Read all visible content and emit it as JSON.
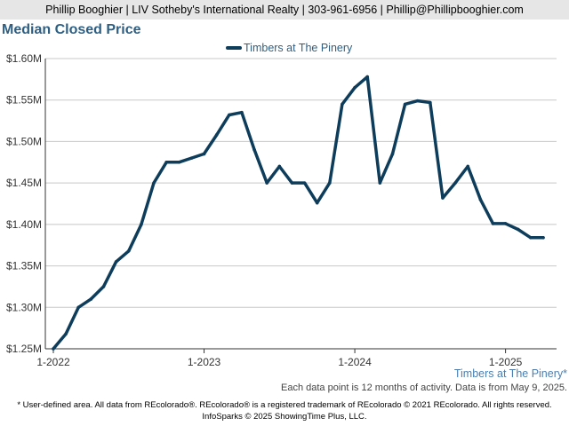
{
  "header": {
    "text": "Phillip Booghier | LIV Sotheby's International Realty | 303-961-6956 | Phillip@Phillipbooghier.com"
  },
  "footer": {
    "series_note": "Timbers at The Pinery*",
    "activity_note": "Each data point is 12 months of activity. Data is from May 9, 2025.",
    "disclaimer": "* User-defined area. All data from REcolorado®. REcolorado® is a registered trademark of REcolorado © 2021 REcolorado. All rights reserved.",
    "copyright": "InfoSparks © 2025 ShowingTime Plus, LLC."
  },
  "colors": {
    "series": "#0e3d5c",
    "title": "#2e5f83",
    "note": "#4a7fb0",
    "grid": "#c8c8c8",
    "axis": "#333333"
  },
  "chart_data": {
    "type": "line",
    "title": "Median Closed Price",
    "legend": "top-center",
    "grid": true,
    "ylim": [
      1250000,
      1600000
    ],
    "yticks": [
      1250000,
      1300000,
      1350000,
      1400000,
      1450000,
      1500000,
      1550000,
      1600000
    ],
    "ytick_labels": [
      "$1.25M",
      "$1.30M",
      "$1.35M",
      "$1.40M",
      "$1.45M",
      "$1.50M",
      "$1.55M",
      "$1.60M"
    ],
    "xlim": [
      "2022-01",
      "2025-04"
    ],
    "xticks": [
      "2022-01",
      "2023-01",
      "2024-01",
      "2025-01"
    ],
    "xtick_labels": [
      "1-2022",
      "1-2023",
      "1-2024",
      "1-2025"
    ],
    "series": [
      {
        "name": "Timbers at The Pinery",
        "x": [
          "2022-01",
          "2022-02",
          "2022-03",
          "2022-04",
          "2022-05",
          "2022-06",
          "2022-07",
          "2022-08",
          "2022-09",
          "2022-10",
          "2022-11",
          "2022-12",
          "2023-01",
          "2023-02",
          "2023-03",
          "2023-04",
          "2023-05",
          "2023-06",
          "2023-07",
          "2023-08",
          "2023-09",
          "2023-10",
          "2023-11",
          "2023-12",
          "2024-01",
          "2024-02",
          "2024-03",
          "2024-04",
          "2024-05",
          "2024-06",
          "2024-07",
          "2024-08",
          "2024-09",
          "2024-10",
          "2024-11",
          "2024-12",
          "2025-01",
          "2025-02",
          "2025-03",
          "2025-04"
        ],
        "values": [
          1250000,
          1268000,
          1300000,
          1310000,
          1325000,
          1355000,
          1368000,
          1400000,
          1450000,
          1475000,
          1475000,
          1480000,
          1485000,
          1508000,
          1532000,
          1535000,
          1490000,
          1450000,
          1470000,
          1450000,
          1450000,
          1426000,
          1450000,
          1545000,
          1565000,
          1578000,
          1450000,
          1485000,
          1545000,
          1549000,
          1547000,
          1432000,
          1450000,
          1470000,
          1430000,
          1401000,
          1401000,
          1394000,
          1384000,
          1384000
        ]
      }
    ]
  }
}
